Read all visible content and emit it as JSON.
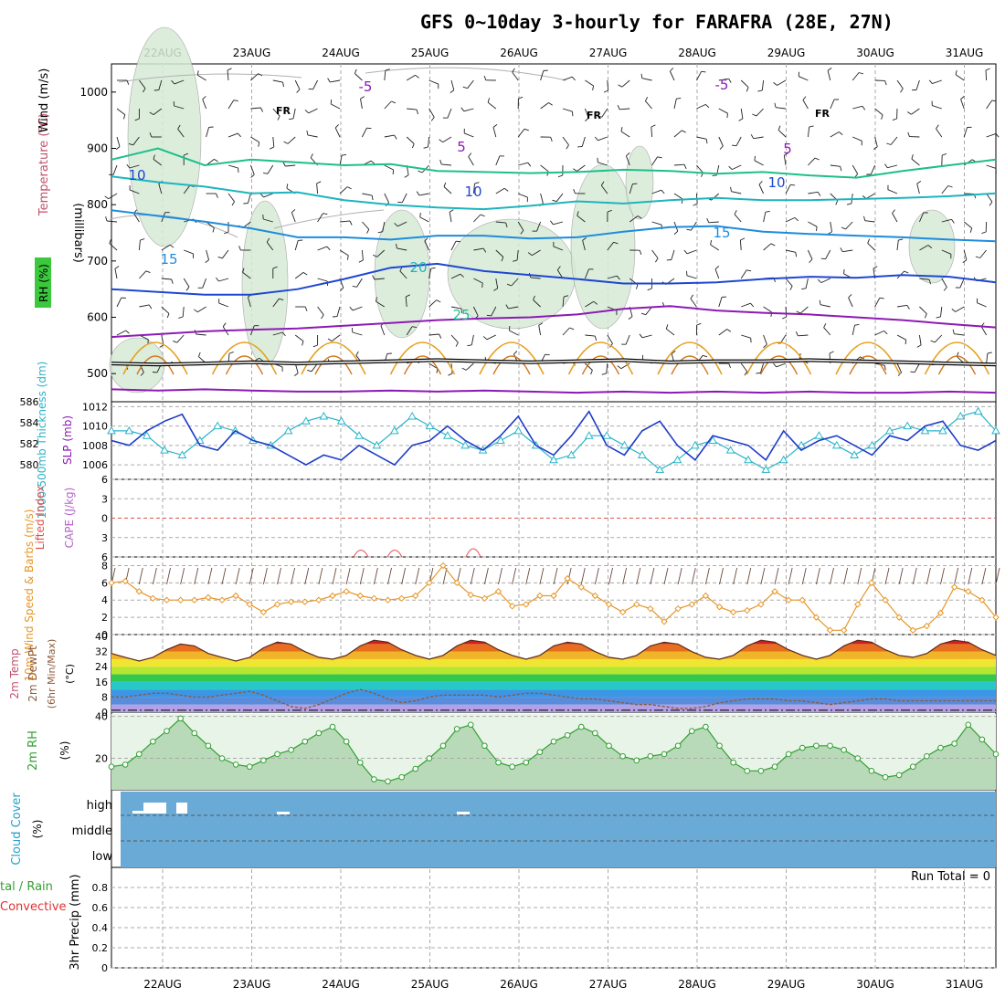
{
  "title": "GFS 0~10day 3-hourly for FARAFRA (28E, 27N)",
  "dates": [
    "22AUG",
    "23AUG",
    "24AUG",
    "25AUG",
    "26AUG",
    "27AUG",
    "28AUG",
    "29AUG",
    "30AUG",
    "31AUG"
  ],
  "colors": {
    "temp_contour_purple": "#8c1ab4",
    "temp_contour_blue": "#1e46d2",
    "temp_contour_lightblue": "#1e8cdc",
    "temp_contour_cyan": "#1eb4be",
    "temp_contour_teal": "#1ebe8c",
    "temp_contour_orange": "#e6a01e",
    "rh_shade": "#d6ead6",
    "slp_line": "#1e3cc8",
    "thickness_line": "#28b4c8",
    "wind_speed_line": "#e69628",
    "rh2m_line": "#32a032",
    "cloud_bg": "#6aaad6"
  },
  "chart_data": [
    {
      "type": "line",
      "name_panel": "upper-air",
      "ylabel": "(millibars)",
      "side_labels": [
        "RH (%)",
        "Temperature (°C)",
        "Wind (m/s)"
      ],
      "y_ticks": [
        500,
        600,
        700,
        800,
        900,
        1000
      ],
      "ylim": [
        1050,
        450
      ],
      "contour_labels": [
        "-5",
        "FR",
        "5",
        "10",
        "15",
        "20",
        "25"
      ],
      "series": [
        {
          "label": "-5",
          "values": [
            472,
            470,
            472,
            470,
            468,
            468,
            470,
            468,
            470,
            468,
            466,
            468,
            466,
            468,
            466,
            468,
            466,
            466,
            468,
            466
          ]
        },
        {
          "label": "FR",
          "values": [
            518,
            516,
            518,
            520,
            518,
            520,
            522,
            524,
            522,
            520,
            522,
            524,
            520,
            522,
            522,
            524,
            522,
            520,
            518,
            516
          ]
        },
        {
          "label": "5",
          "values": [
            565,
            570,
            575,
            578,
            580,
            585,
            590,
            595,
            598,
            600,
            605,
            615,
            620,
            612,
            608,
            605,
            600,
            595,
            588,
            582
          ]
        },
        {
          "label": "10",
          "values": [
            650,
            645,
            640,
            640,
            650,
            668,
            688,
            695,
            682,
            675,
            668,
            660,
            660,
            662,
            668,
            672,
            670,
            675,
            672,
            662
          ]
        },
        {
          "label": "15",
          "values": [
            790,
            780,
            770,
            758,
            742,
            742,
            738,
            745,
            745,
            740,
            742,
            752,
            760,
            762,
            752,
            748,
            745,
            742,
            738,
            735
          ]
        },
        {
          "label": "20",
          "values": [
            850,
            840,
            832,
            820,
            822,
            808,
            800,
            795,
            792,
            798,
            806,
            802,
            808,
            812,
            808,
            808,
            810,
            812,
            815,
            820
          ]
        },
        {
          "label": "25",
          "values": [
            880,
            900,
            870,
            880,
            875,
            870,
            872,
            860,
            858,
            856,
            858,
            862,
            860,
            855,
            858,
            852,
            848,
            860,
            870,
            880
          ]
        }
      ]
    },
    {
      "type": "line",
      "name_panel": "slp-thickness",
      "ylabel": "SLP (mb)",
      "ylabel2": "1000-500mb Thickness (dm)",
      "left_ticks": [
        580,
        582,
        584,
        586
      ],
      "right_ticks": [
        1006,
        1008,
        1010,
        1012
      ],
      "ylim": [
        1004.5,
        1012.5
      ],
      "series": [
        {
          "name": "SLP",
          "values": [
            1008.5,
            1008.0,
            1009.5,
            1010.5,
            1011.2,
            1008.0,
            1007.5,
            1009.5,
            1008.5,
            1008.0,
            1007.0,
            1006.0,
            1007.0,
            1006.5,
            1008.0,
            1007.0,
            1006.0,
            1008.0,
            1008.5,
            1010.0,
            1008.5,
            1007.5,
            1009.0,
            1011.0,
            1008.0,
            1007.0,
            1009.0,
            1011.5,
            1008.0,
            1007.0,
            1009.5,
            1010.5,
            1008.0,
            1006.5,
            1009.0,
            1008.5,
            1008.0,
            1006.5,
            1009.5,
            1007.5,
            1008.5,
            1009.0,
            1008.0,
            1007.0,
            1009.0,
            1008.5,
            1010.0,
            1010.5,
            1008.0,
            1007.5,
            1008.5
          ]
        },
        {
          "name": "Thickness",
          "values": [
            1009.5,
            1009.5,
            1009.0,
            1007.5,
            1007.0,
            1008.5,
            1010.0,
            1009.5,
            1008.5,
            1008.0,
            1009.5,
            1010.5,
            1011.0,
            1010.5,
            1009.0,
            1008.0,
            1009.5,
            1011.0,
            1010.0,
            1009.0,
            1008.0,
            1007.5,
            1008.5,
            1009.5,
            1008.0,
            1006.5,
            1007.0,
            1009.0,
            1009.0,
            1008.0,
            1007.0,
            1005.5,
            1006.5,
            1008.0,
            1008.5,
            1007.5,
            1006.5,
            1005.5,
            1006.5,
            1008.0,
            1009.0,
            1008.0,
            1007.0,
            1008.0,
            1009.5,
            1010.0,
            1009.5,
            1009.5,
            1011.0,
            1011.5,
            1009.5
          ]
        }
      ]
    },
    {
      "type": "line",
      "name_panel": "stability",
      "ylabel": "Lifted Index",
      "ylabel2": "CAPE (J/kg)",
      "y_ticks": [
        -6,
        -3,
        0,
        3,
        6
      ],
      "tick_labels": [
        "6",
        "3",
        "0",
        "3",
        "6"
      ],
      "ylim": [
        -6,
        6
      ]
    },
    {
      "type": "line",
      "name_panel": "wind10m",
      "ylabel": "10m Wind Speed & Barbs (m/s)",
      "y_ticks": [
        0,
        2,
        4,
        6,
        8
      ],
      "ylim": [
        0,
        9
      ],
      "series": [
        {
          "name": "Speed",
          "values": [
            6.0,
            6.2,
            5.0,
            4.2,
            4.0,
            4.0,
            4.0,
            4.3,
            4.0,
            4.5,
            3.5,
            2.6,
            3.5,
            3.8,
            3.8,
            4.0,
            4.5,
            5.0,
            4.5,
            4.2,
            4.0,
            4.2,
            4.5,
            6.0,
            8.0,
            6.0,
            4.6,
            4.2,
            5.0,
            3.3,
            3.5,
            4.5,
            4.5,
            6.5,
            5.5,
            4.5,
            3.5,
            2.6,
            3.5,
            3.0,
            1.5,
            3.0,
            3.5,
            4.5,
            3.2,
            2.6,
            2.8,
            3.5,
            5.0,
            4.0,
            4.0,
            2.0,
            0.5,
            0.5,
            3.5,
            6.0,
            4.0,
            2.0,
            0.5,
            1.0,
            2.5,
            5.5,
            5.0,
            4.0,
            2.0
          ]
        }
      ]
    },
    {
      "type": "area",
      "name_panel": "temp2m",
      "ylabel": "2m Temp / 2m DewPt (6hr Min/Max) (°C)",
      "y_ticks": [
        0,
        8,
        16,
        24,
        32,
        40
      ],
      "ylim": [
        0,
        41
      ],
      "series": [
        {
          "name": "Temp",
          "values": [
            31,
            29,
            27,
            29,
            33,
            36,
            35,
            31,
            29,
            27,
            29,
            34,
            37,
            36,
            32,
            29,
            28,
            30,
            35,
            38,
            37,
            33,
            30,
            28,
            30,
            35,
            38,
            37,
            33,
            30,
            28,
            30,
            35,
            37,
            36,
            32,
            29,
            28,
            30,
            35,
            37,
            36,
            32,
            29,
            28,
            30,
            35,
            38,
            37,
            33,
            30,
            28,
            30,
            35,
            38,
            37,
            33,
            30,
            29,
            31,
            36,
            38,
            37,
            33,
            30
          ]
        },
        {
          "name": "DewPt",
          "values": [
            8,
            8,
            9,
            10,
            10,
            9,
            8,
            8,
            9,
            10,
            11,
            9,
            6,
            3,
            2,
            4,
            7,
            10,
            12,
            10,
            7,
            5,
            6,
            8,
            9,
            9,
            9,
            9,
            8,
            9,
            10,
            10,
            9,
            8,
            7,
            7,
            6,
            5,
            4,
            4,
            3,
            2,
            2,
            3,
            5,
            6,
            7,
            7,
            7,
            6,
            6,
            5,
            4,
            5,
            6,
            7,
            7,
            6,
            6,
            6,
            6,
            6,
            6,
            6,
            6
          ]
        }
      ]
    },
    {
      "type": "area",
      "name_panel": "rh2m",
      "ylabel": "2m RH (%)",
      "y_ticks": [
        20,
        40
      ],
      "ylim": [
        5,
        42
      ],
      "series": [
        {
          "name": "RH",
          "values": [
            16,
            17,
            22,
            28,
            33,
            39,
            32,
            26,
            20,
            17,
            16,
            19,
            22,
            24,
            28,
            32,
            35,
            28,
            18,
            10,
            9,
            11,
            15,
            20,
            26,
            34,
            36,
            26,
            18,
            16,
            18,
            23,
            28,
            31,
            35,
            32,
            26,
            21,
            19,
            21,
            22,
            26,
            33,
            35,
            26,
            18,
            14,
            14,
            16,
            22,
            25,
            26,
            26,
            24,
            20,
            14,
            11,
            12,
            16,
            21,
            25,
            27,
            36,
            29,
            22
          ]
        }
      ]
    },
    {
      "type": "bar",
      "name_panel": "cloud",
      "ylabel": "Cloud Cover (%)",
      "levels": [
        "high",
        "middle",
        "low"
      ]
    },
    {
      "type": "bar",
      "name_panel": "precip",
      "ylabel": "3hr Precip (mm)",
      "side_labels": [
        "tal / Rain",
        "Convective"
      ],
      "y_ticks": [
        0,
        0.2,
        0.4,
        0.6,
        0.8
      ],
      "y_tick_labels": [
        "0",
        "0.2",
        "0.4",
        "0.6",
        "0.8"
      ],
      "ylim": [
        0,
        1.0
      ],
      "run_total": "Run Total = 0"
    }
  ]
}
